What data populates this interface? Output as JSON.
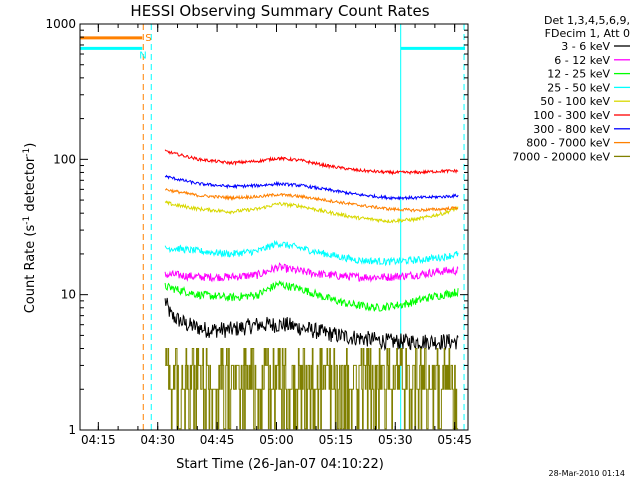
{
  "chart_data": {
    "type": "line",
    "title": "HESSI Observing Summary Count Rates",
    "xlabel": "Start Time (26-Jan-07 04:10:22)",
    "ylabel_parts": [
      "Count Rate (s",
      "-1",
      " detector",
      "-1",
      ")"
    ],
    "x_unit": "minutes from 04:10:22",
    "xlim": [
      0,
      98
    ],
    "ylim": [
      1,
      1000
    ],
    "yscale": "log",
    "x_tick_labels": [
      "04:15",
      "04:30",
      "04:45",
      "05:00",
      "05:15",
      "05:30",
      "05:45"
    ],
    "x_tick_positions": [
      4.63,
      19.63,
      34.63,
      49.63,
      64.63,
      79.63,
      94.63
    ],
    "y_tick_labels": [
      "1",
      "10",
      "100",
      "1000"
    ],
    "y_tick_values": [
      1,
      10,
      100,
      1000
    ],
    "legend_header": [
      "Det 1,3,4,5,6,9,",
      "FDecim 1, Att 0"
    ],
    "legend_position": "right",
    "data_start_min": 21.5,
    "data_end_min": 95.5,
    "series": [
      {
        "name": "3 - 6 keV",
        "color": "#000000",
        "x": [
          21.5,
          23,
          27,
          32,
          38,
          45,
          52,
          58,
          65,
          70,
          78,
          85,
          92,
          95.5
        ],
        "y": [
          9,
          7,
          6,
          5.5,
          5.5,
          6,
          6,
          5.5,
          5,
          4.8,
          4.5,
          4.5,
          4.5,
          4.5
        ],
        "noise": 0.14
      },
      {
        "name": "6 - 12 keV",
        "color": "#ff00ff",
        "x": [
          21.5,
          24,
          30,
          38,
          45,
          50,
          55,
          62,
          70,
          78,
          85,
          92,
          95.5
        ],
        "y": [
          14,
          14,
          13.5,
          13.5,
          14,
          16,
          15,
          14,
          13.5,
          13.5,
          14,
          15,
          15
        ],
        "noise": 0.07
      },
      {
        "name": "12 - 25 keV",
        "color": "#00ff00",
        "x": [
          21.5,
          24,
          30,
          38,
          45,
          50,
          56,
          62,
          68,
          75,
          82,
          88,
          95.5
        ],
        "y": [
          11.5,
          11,
          10,
          9.5,
          10,
          12,
          11,
          9.5,
          8.5,
          8,
          8.5,
          9.5,
          10.5
        ],
        "noise": 0.07
      },
      {
        "name": "25 - 50 keV",
        "color": "#00ffff",
        "x": [
          21.5,
          24,
          30,
          38,
          45,
          50,
          56,
          62,
          70,
          78,
          85,
          92,
          95.5
        ],
        "y": [
          22,
          22,
          21,
          20,
          21,
          24,
          22,
          20,
          18,
          17.5,
          18,
          19,
          20
        ],
        "noise": 0.06
      },
      {
        "name": "50 - 100 keV",
        "color": "#d8d800",
        "x": [
          21.5,
          24,
          30,
          38,
          45,
          50,
          56,
          62,
          70,
          78,
          85,
          92,
          95.5
        ],
        "y": [
          48,
          46,
          43,
          41,
          43,
          47,
          45,
          41,
          37,
          35,
          36,
          40,
          44
        ],
        "noise": 0.03
      },
      {
        "name": "100 - 300 keV",
        "color": "#ff0000",
        "x": [
          21.5,
          24,
          30,
          38,
          45,
          50,
          56,
          62,
          70,
          78,
          85,
          92,
          95.5
        ],
        "y": [
          115,
          110,
          100,
          94,
          97,
          102,
          98,
          90,
          83,
          80,
          80,
          82,
          82
        ],
        "noise": 0.025
      },
      {
        "name": "300 - 800 keV",
        "color": "#0000ff",
        "x": [
          21.5,
          24,
          30,
          38,
          45,
          50,
          56,
          62,
          70,
          78,
          85,
          92,
          95.5
        ],
        "y": [
          75,
          72,
          66,
          63,
          64,
          66,
          64,
          60,
          55,
          52,
          52,
          53,
          54
        ],
        "noise": 0.025
      },
      {
        "name": "800 - 7000 keV",
        "color": "#ff8000",
        "x": [
          21.5,
          24,
          30,
          38,
          45,
          50,
          56,
          62,
          70,
          78,
          85,
          92,
          95.5
        ],
        "y": [
          60,
          58,
          54,
          52,
          53,
          55,
          53,
          50,
          46,
          43,
          42,
          43,
          44
        ],
        "noise": 0.025
      },
      {
        "name": "7000 - 20000 keV",
        "color": "#808000",
        "x": [
          21.5,
          95.5
        ],
        "y": [
          2.5,
          2.5
        ],
        "levels": [
          1,
          2,
          3,
          4
        ],
        "stepped": true
      }
    ],
    "saa_flag": {
      "label": "S",
      "color": "#ff8000",
      "y": 790,
      "x": [
        0,
        18
      ]
    },
    "night_flag": {
      "label": "N",
      "color": "#00ffff",
      "y": 660,
      "x": [
        0,
        18
      ]
    },
    "night_flag_right": {
      "color": "#00ffff",
      "y": 660,
      "x": [
        81,
        97
      ]
    },
    "night_lines_solid": [
      0,
      81
    ],
    "night_lines_dashed": [
      18,
      97
    ],
    "timestamp": "28-Mar-2010 01:14"
  }
}
